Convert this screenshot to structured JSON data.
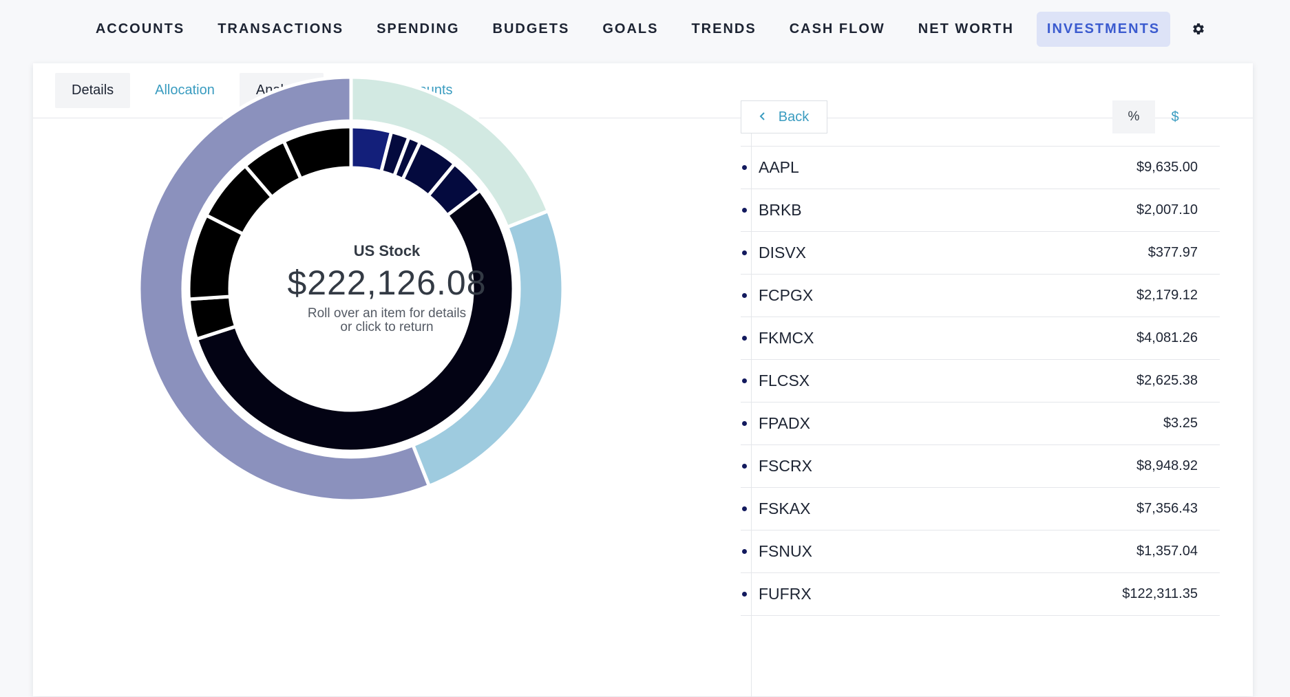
{
  "nav": {
    "items": [
      "ACCOUNTS",
      "TRANSACTIONS",
      "SPENDING",
      "BUDGETS",
      "GOALS",
      "TRENDS",
      "CASH FLOW",
      "NET WORTH",
      "INVESTMENTS"
    ],
    "active": "INVESTMENTS",
    "settings_icon": "gear-icon"
  },
  "subtabs": {
    "details": "Details",
    "allocation": "Allocation",
    "analysis": "Analysis",
    "filter": "Filter Accounts",
    "filter_icon": "funnel-icon"
  },
  "center": {
    "label": "US Stock",
    "value": "$222,126.08",
    "hint_line1": "Roll over an item for details",
    "hint_line2": "or click to return"
  },
  "panel": {
    "back_label": "Back",
    "pct_label": "%",
    "dollar_label": "$",
    "holdings": [
      {
        "ticker": "AAPL",
        "amount": "$9,635.00"
      },
      {
        "ticker": "BRKB",
        "amount": "$2,007.10"
      },
      {
        "ticker": "DISVX",
        "amount": "$377.97"
      },
      {
        "ticker": "FCPGX",
        "amount": "$2,179.12"
      },
      {
        "ticker": "FKMCX",
        "amount": "$4,081.26"
      },
      {
        "ticker": "FLCSX",
        "amount": "$2,625.38"
      },
      {
        "ticker": "FPADX",
        "amount": "$3.25"
      },
      {
        "ticker": "FSCRX",
        "amount": "$8,948.92"
      },
      {
        "ticker": "FSKAX",
        "amount": "$7,356.43"
      },
      {
        "ticker": "FSNUX",
        "amount": "$1,357.04"
      },
      {
        "ticker": "FUFRX",
        "amount": "$122,311.35"
      }
    ]
  },
  "colors": {
    "accent": "#3a9cc0",
    "active_nav_bg": "#dde3f7",
    "active_nav_text": "#3b5bcf",
    "outer_mint": "#d2e9e2",
    "outer_lightblue": "#9ecbdf",
    "outer_lavender": "#8b91bd",
    "inner_navy": "#131f7a",
    "inner_darknavy": "#040a3e",
    "inner_black": "#000000",
    "inner_nearblack": "#030314"
  },
  "chart_data": {
    "type": "pie",
    "outer_ring": {
      "slices": [
        {
          "color": "#d2e9e2",
          "fraction": 0.19
        },
        {
          "color": "#9ecbdf",
          "fraction": 0.25
        },
        {
          "color": "#8b91bd",
          "fraction": 0.56
        }
      ]
    },
    "inner_ring": {
      "slices": [
        {
          "color": "#131f7a",
          "fraction": 0.04
        },
        {
          "color": "#040a3e",
          "fraction": 0.018
        },
        {
          "color": "#040a3e",
          "fraction": 0.012
        },
        {
          "color": "#040a3e",
          "fraction": 0.04
        },
        {
          "color": "#040a3e",
          "fraction": 0.036
        },
        {
          "color": "#030314",
          "fraction": 0.554
        },
        {
          "color": "#000000",
          "fraction": 0.04
        },
        {
          "color": "#000000",
          "fraction": 0.085
        },
        {
          "color": "#000000",
          "fraction": 0.062
        },
        {
          "color": "#000000",
          "fraction": 0.045
        },
        {
          "color": "#000000",
          "fraction": 0.068
        }
      ]
    }
  }
}
